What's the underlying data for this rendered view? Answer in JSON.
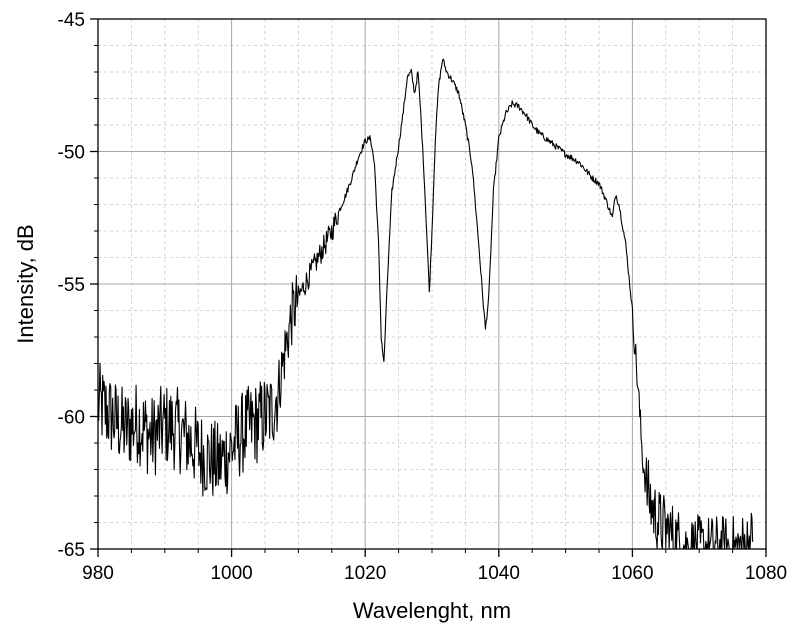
{
  "chart_data": {
    "type": "line",
    "title": "",
    "xlabel": "Wavelenght, nm",
    "ylabel": "Intensity, dB",
    "xlim": [
      980,
      1080
    ],
    "ylim": [
      -65,
      -45
    ],
    "xticks": [
      980,
      1000,
      1020,
      1040,
      1060,
      1080
    ],
    "yticks": [
      -65,
      -60,
      -55,
      -50,
      -45
    ],
    "xtick_labels": [
      "980",
      "1000",
      "1020",
      "1040",
      "1060",
      "1080"
    ],
    "ytick_labels": [
      "-65",
      "-60",
      "-55",
      "-50",
      "-45"
    ],
    "x_minor_step": 5,
    "y_minor_step": 1,
    "grid": true,
    "line_color": "#000000",
    "grid_color": "#c8c8c8",
    "series": [
      {
        "noise": "high-frequency spectral noise",
        "x": [
          980,
          982,
          984,
          986,
          988,
          990,
          992,
          994,
          996,
          998,
          1000,
          1002,
          1004,
          1005,
          1006,
          1007,
          1008,
          1009,
          1010,
          1011,
          1012,
          1013,
          1014,
          1015,
          1016,
          1017,
          1018,
          1019,
          1020,
          1020.8,
          1021.4,
          1022,
          1022.4,
          1022.8,
          1023.3,
          1024,
          1025,
          1025.7,
          1026.3,
          1026.9,
          1027.4,
          1027.9,
          1028.3,
          1028.8,
          1029.2,
          1029.6,
          1030,
          1030.5,
          1031,
          1031.6,
          1032.2,
          1033,
          1034,
          1035,
          1036,
          1037,
          1037.6,
          1038,
          1038.5,
          1039.2,
          1040,
          1041,
          1042,
          1043,
          1044,
          1045,
          1046,
          1048,
          1050,
          1052,
          1054,
          1055,
          1056,
          1057,
          1057.5,
          1058,
          1059,
          1060,
          1061,
          1061.5,
          1062,
          1063,
          1064,
          1066,
          1068,
          1070,
          1072,
          1074,
          1076,
          1078
        ],
        "y": [
          -59.5,
          -60.0,
          -60.5,
          -60.2,
          -60.8,
          -60.3,
          -60.5,
          -61.0,
          -61.5,
          -61.8,
          -61.2,
          -60.5,
          -60.2,
          -60.0,
          -59.8,
          -59.0,
          -57.5,
          -56.2,
          -55.5,
          -55.0,
          -54.5,
          -54.0,
          -53.5,
          -53.0,
          -52.3,
          -51.7,
          -51.0,
          -50.2,
          -49.6,
          -49.5,
          -50.5,
          -53.5,
          -57.0,
          -58.0,
          -55.0,
          -51.5,
          -49.8,
          -48.5,
          -47.2,
          -47.0,
          -47.8,
          -47.0,
          -48.5,
          -50.8,
          -53.0,
          -55.3,
          -53.0,
          -49.5,
          -47.5,
          -46.5,
          -47.0,
          -47.3,
          -47.8,
          -49.0,
          -50.5,
          -53.5,
          -55.5,
          -56.7,
          -55.5,
          -51.5,
          -49.5,
          -48.6,
          -48.2,
          -48.3,
          -48.6,
          -49.0,
          -49.3,
          -49.7,
          -50.1,
          -50.4,
          -51.0,
          -51.2,
          -51.8,
          -52.5,
          -51.6,
          -52.0,
          -53.5,
          -56.0,
          -59.5,
          -61.5,
          -62.5,
          -63.5,
          -64.0,
          -64.5,
          -65.0,
          -65.0,
          -65.0,
          -65.0,
          -65.0,
          -64.7
        ]
      }
    ]
  }
}
